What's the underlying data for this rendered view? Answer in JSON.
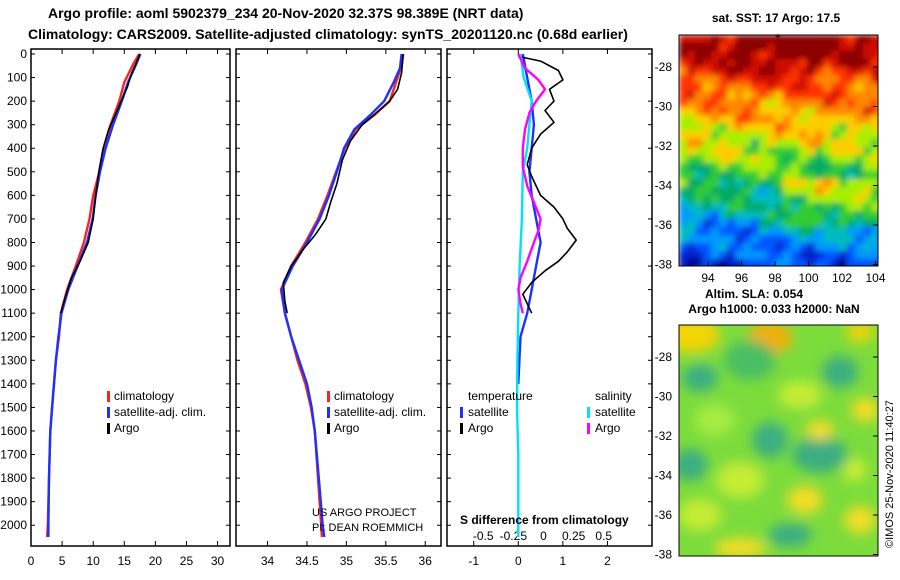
{
  "header": {
    "title_line1": "Argo profile: aoml 5902379_234 20-Nov-2020 32.37S 98.389E (NRT data)",
    "title_line2": "Climatology: CARS2009. Satellite-adjusted climatology: synTS_20201120.nc (0.68d earlier)"
  },
  "colors": {
    "climatology": "#ff2020",
    "satellite": "#1a33ff",
    "argo": "#000000",
    "sal_satellite": "#00e0ff",
    "sal_argo": "#ff00ff"
  },
  "chart_data": [
    {
      "id": "temperature-profile",
      "type": "line",
      "ylabel": "depth",
      "ylim": [
        0,
        2080
      ],
      "xlim": [
        0,
        32
      ],
      "xticks": [
        0,
        5,
        10,
        15,
        20,
        25,
        30
      ],
      "yticks": [
        0,
        100,
        200,
        300,
        400,
        500,
        600,
        700,
        800,
        900,
        1000,
        1100,
        1200,
        1300,
        1400,
        1500,
        1600,
        1700,
        1800,
        1900,
        2000
      ],
      "legend": [
        "climatology",
        "satellite-adj. clim.",
        "Argo"
      ],
      "series": [
        {
          "name": "climatology",
          "color": "#ff2020",
          "points": [
            [
              17.4,
              0
            ],
            [
              16.5,
              40
            ],
            [
              15.0,
              120
            ],
            [
              14.2,
              200
            ],
            [
              12.8,
              300
            ],
            [
              11.8,
              400
            ],
            [
              11.0,
              500
            ],
            [
              10.0,
              600
            ],
            [
              9.4,
              700
            ],
            [
              8.5,
              800
            ],
            [
              7.2,
              900
            ],
            [
              5.8,
              1000
            ],
            [
              4.8,
              1100
            ],
            [
              4.5,
              1200
            ],
            [
              4.0,
              1300
            ],
            [
              3.7,
              1400
            ],
            [
              3.4,
              1500
            ],
            [
              3.1,
              1600
            ],
            [
              2.9,
              1800
            ],
            [
              2.7,
              2000
            ],
            [
              2.6,
              2050
            ]
          ]
        },
        {
          "name": "satellite-adj. clim.",
          "color": "#1a33ff",
          "points": [
            [
              17.6,
              0
            ],
            [
              16.8,
              50
            ],
            [
              15.6,
              120
            ],
            [
              14.6,
              200
            ],
            [
              13.2,
              300
            ],
            [
              12.0,
              400
            ],
            [
              11.1,
              500
            ],
            [
              10.4,
              600
            ],
            [
              9.9,
              700
            ],
            [
              9.0,
              800
            ],
            [
              7.5,
              900
            ],
            [
              6.0,
              1000
            ],
            [
              4.9,
              1100
            ],
            [
              4.4,
              1200
            ],
            [
              4.0,
              1300
            ],
            [
              3.7,
              1400
            ],
            [
              3.4,
              1500
            ],
            [
              3.1,
              1600
            ],
            [
              2.9,
              1800
            ],
            [
              2.8,
              2000
            ],
            [
              2.8,
              2050
            ]
          ]
        },
        {
          "name": "Argo",
          "color": "#000000",
          "points": [
            [
              17.5,
              0
            ],
            [
              16.9,
              40
            ],
            [
              16.2,
              80
            ],
            [
              15.5,
              140
            ],
            [
              14.5,
              200
            ],
            [
              13.5,
              260
            ],
            [
              12.5,
              320
            ],
            [
              11.6,
              400
            ],
            [
              10.9,
              500
            ],
            [
              10.4,
              600
            ],
            [
              10.0,
              700
            ],
            [
              9.2,
              800
            ],
            [
              7.9,
              880
            ],
            [
              6.5,
              950
            ],
            [
              5.3,
              1050
            ],
            [
              4.8,
              1100
            ]
          ]
        }
      ]
    },
    {
      "id": "salinity-profile",
      "type": "line",
      "xlim": [
        33.6,
        36.2
      ],
      "xticks": [
        34,
        34.5,
        35,
        35.5,
        36
      ],
      "legend": [
        "climatology",
        "satellite-adj. clim.",
        "Argo"
      ],
      "annotations": [
        "US ARGO PROJECT",
        "PI: DEAN ROEMMICH"
      ],
      "series": [
        {
          "name": "climatology",
          "color": "#ff2020",
          "points": [
            [
              35.72,
              0
            ],
            [
              35.7,
              50
            ],
            [
              35.65,
              100
            ],
            [
              35.55,
              200
            ],
            [
              35.35,
              260
            ],
            [
              35.12,
              320
            ],
            [
              34.98,
              400
            ],
            [
              34.87,
              500
            ],
            [
              34.76,
              600
            ],
            [
              34.64,
              700
            ],
            [
              34.48,
              800
            ],
            [
              34.3,
              900
            ],
            [
              34.17,
              1000
            ],
            [
              34.22,
              1100
            ],
            [
              34.3,
              1200
            ],
            [
              34.38,
              1300
            ],
            [
              34.48,
              1400
            ],
            [
              34.55,
              1500
            ],
            [
              34.6,
              1600
            ],
            [
              34.64,
              1800
            ],
            [
              34.68,
              2000
            ],
            [
              34.69,
              2050
            ]
          ]
        },
        {
          "name": "satellite-adj. clim.",
          "color": "#1a33ff",
          "points": [
            [
              35.7,
              0
            ],
            [
              35.68,
              60
            ],
            [
              35.6,
              120
            ],
            [
              35.48,
              200
            ],
            [
              35.3,
              260
            ],
            [
              35.1,
              320
            ],
            [
              34.97,
              400
            ],
            [
              34.88,
              500
            ],
            [
              34.78,
              600
            ],
            [
              34.66,
              700
            ],
            [
              34.5,
              800
            ],
            [
              34.32,
              900
            ],
            [
              34.18,
              1000
            ],
            [
              34.22,
              1100
            ],
            [
              34.3,
              1200
            ],
            [
              34.4,
              1300
            ],
            [
              34.5,
              1400
            ],
            [
              34.56,
              1500
            ],
            [
              34.6,
              1600
            ],
            [
              34.65,
              1800
            ],
            [
              34.7,
              2000
            ],
            [
              34.72,
              2050
            ]
          ]
        },
        {
          "name": "Argo",
          "color": "#000000",
          "points": [
            [
              35.72,
              0
            ],
            [
              35.7,
              80
            ],
            [
              35.65,
              150
            ],
            [
              35.55,
              200
            ],
            [
              35.38,
              250
            ],
            [
              35.2,
              300
            ],
            [
              35.05,
              370
            ],
            [
              34.95,
              450
            ],
            [
              34.88,
              550
            ],
            [
              34.8,
              630
            ],
            [
              34.74,
              700
            ],
            [
              34.6,
              770
            ],
            [
              34.45,
              830
            ],
            [
              34.3,
              900
            ],
            [
              34.2,
              970
            ],
            [
              34.22,
              1050
            ],
            [
              34.25,
              1100
            ]
          ]
        }
      ]
    },
    {
      "id": "difference-profile",
      "type": "line",
      "xlim": [
        -1.6,
        3.0
      ],
      "xticks": [
        -1,
        0,
        1,
        2
      ],
      "top_xticks": [
        -0.5,
        -0.25,
        0,
        0.25,
        0.5
      ],
      "xlabel": "S difference from climatology",
      "legend_temperature": {
        "title": "temperature",
        "items": [
          "satellite",
          "Argo"
        ]
      },
      "legend_salinity": {
        "title": "salinity",
        "items": [
          "satellite",
          "Argo"
        ]
      },
      "series": [
        {
          "name": "temperature satellite",
          "color": "#1a33ff",
          "points": [
            [
              0.1,
              0
            ],
            [
              0.2,
              100
            ],
            [
              0.3,
              200
            ],
            [
              0.35,
              300
            ],
            [
              0.3,
              400
            ],
            [
              0.25,
              500
            ],
            [
              0.3,
              600
            ],
            [
              0.4,
              700
            ],
            [
              0.5,
              800
            ],
            [
              0.4,
              900
            ],
            [
              0.3,
              1000
            ],
            [
              0.2,
              1100
            ],
            [
              0.05,
              1200
            ],
            [
              0,
              1400
            ]
          ]
        },
        {
          "name": "temperature Argo",
          "color": "#000000",
          "points": [
            [
              0.0,
              10
            ],
            [
              0.5,
              30
            ],
            [
              0.9,
              70
            ],
            [
              1.0,
              110
            ],
            [
              0.7,
              150
            ],
            [
              0.8,
              200
            ],
            [
              0.6,
              240
            ],
            [
              0.8,
              290
            ],
            [
              0.5,
              340
            ],
            [
              0.3,
              400
            ],
            [
              0.2,
              470
            ],
            [
              0.3,
              520
            ],
            [
              0.5,
              600
            ],
            [
              0.8,
              650
            ],
            [
              1.0,
              700
            ],
            [
              1.1,
              740
            ],
            [
              1.3,
              790
            ],
            [
              1.1,
              840
            ],
            [
              0.9,
              880
            ],
            [
              0.6,
              920
            ],
            [
              0.3,
              970
            ],
            [
              0.1,
              1020
            ],
            [
              0.2,
              1060
            ],
            [
              0.3,
              1100
            ]
          ]
        },
        {
          "name": "salinity satellite",
          "color": "#00e0ff",
          "points": [
            [
              0.05,
              0
            ],
            [
              0.12,
              100
            ],
            [
              0.3,
              200
            ],
            [
              0.25,
              300
            ],
            [
              0.2,
              400
            ],
            [
              0.1,
              500
            ],
            [
              0.08,
              700
            ],
            [
              0.03,
              900
            ],
            [
              0.0,
              1100
            ],
            [
              -0.02,
              1300
            ],
            [
              -0.03,
              1500
            ],
            [
              0.0,
              1700
            ],
            [
              0.0,
              2050
            ]
          ]
        },
        {
          "name": "salinity Argo",
          "color": "#ff00ff",
          "points": [
            [
              0.0,
              0
            ],
            [
              0.15,
              60
            ],
            [
              0.45,
              110
            ],
            [
              0.6,
              150
            ],
            [
              0.4,
              200
            ],
            [
              0.25,
              250
            ],
            [
              0.15,
              320
            ],
            [
              0.1,
              400
            ],
            [
              0.1,
              480
            ],
            [
              0.2,
              560
            ],
            [
              0.35,
              630
            ],
            [
              0.5,
              700
            ],
            [
              0.45,
              750
            ],
            [
              0.35,
              800
            ],
            [
              0.2,
              880
            ],
            [
              0.05,
              950
            ],
            [
              0.0,
              1000
            ],
            [
              0.05,
              1060
            ],
            [
              0.1,
              1100
            ]
          ]
        }
      ]
    },
    {
      "id": "sst-map",
      "type": "heatmap",
      "title": "sat. SST: 17 Argo: 17.5",
      "yticks": [
        "-28",
        "-30",
        "-32",
        "-34",
        "-36",
        "-38"
      ],
      "xticks": [
        "94",
        "96",
        "98",
        "100",
        "102",
        "104"
      ]
    },
    {
      "id": "sla-map",
      "type": "heatmap",
      "title_line1": "Altim. SLA: 0.054",
      "title_line2": "Argo h1000: 0.033 h2000: NaN",
      "yticks": [
        "-28",
        "-30",
        "-32",
        "-34",
        "-36",
        "-38"
      ]
    }
  ],
  "footer": {
    "credit": "©IMOS 25-Nov-2020 11:40:27"
  }
}
